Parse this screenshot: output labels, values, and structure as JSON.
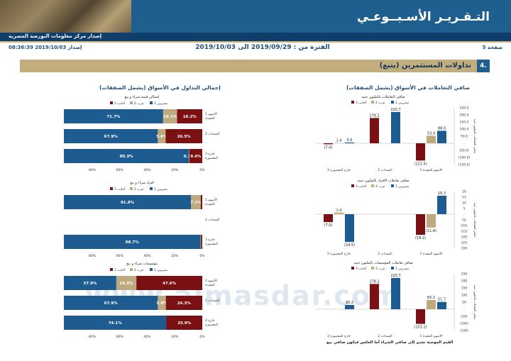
{
  "header": {
    "title": "التـقـريـر الأسـبــوعـي",
    "subtitle": "إصدار مركز معلومات البورصة المصرية"
  },
  "meta": {
    "page": "صفحة 5",
    "issued": "إصدار 2019/10/03 08:36:39",
    "period": "الفترة من : 2019/09/29 الى 2019/10/03"
  },
  "section": {
    "number": "4.",
    "title": "تداولات المستثمرين (يتبع)"
  },
  "left_title": "إجمالي التداول في الأسواق (يشمل الصفقات)",
  "right_title": "صافي التعاملات في الأسواق (يشمل الصفقات)",
  "footnote": "القيم الموجبة تشير إلى صافي الشراء أما العكس فيكون صافي بيع",
  "watermark": "www.almasdar.com",
  "colors": {
    "blue": "#1d5b90",
    "tan": "#bfa97f",
    "red": "#7a1012"
  },
  "chart_data": [
    {
      "type": "bar",
      "title": "إجمالي قيمة شراء و بيع",
      "orientation": "horizontal-stacked-100",
      "legend": [
        "مصريين 1",
        "عرب 2",
        "أجانب 3"
      ],
      "categories": [
        "الأسهم 1 المقيدة",
        "السندات 2",
        "خارج 3 المقصورة"
      ],
      "series": [
        {
          "name": "مصريين 1",
          "values": [
            71.7,
            67.9,
            90.3
          ]
        },
        {
          "name": "عرب 2",
          "values": [
            10.1,
            5.6,
            0.3
          ]
        },
        {
          "name": "أجانب 3",
          "values": [
            18.2,
            26.5,
            9.4
          ]
        }
      ],
      "labels": [
        [
          "71.7%",
          "10.1%",
          "18.2%"
        ],
        [
          "67.9%",
          "5.6%",
          "26.5%"
        ],
        [
          "90.3%",
          "0.3%",
          "9.4%"
        ]
      ],
      "ticks": [
        "80%",
        "60%",
        "40%",
        "20%",
        "0%"
      ]
    },
    {
      "type": "bar",
      "title": "افراد شراء و بيع",
      "orientation": "horizontal-stacked-100",
      "legend": [
        "مصريين 1",
        "عرب 2",
        "أجانب 3"
      ],
      "categories": [
        "الأسهم 1 المقيدة",
        "السندات 2",
        "خارج 3 المقصورة"
      ],
      "series": [
        {
          "name": "مصريين 1",
          "values": [
            91.8,
            0,
            98.7
          ]
        },
        {
          "name": "عرب 2",
          "values": [
            7.1,
            0,
            0.4
          ]
        },
        {
          "name": "أجانب 3",
          "values": [
            1.1,
            0,
            0.9
          ]
        }
      ],
      "labels": [
        [
          "91.8%",
          "7.1%",
          ""
        ],
        [
          "",
          "",
          ""
        ],
        [
          "98.7%",
          "",
          ""
        ]
      ],
      "ticks": [
        "80%",
        "60%",
        "40%",
        "20%",
        "0%"
      ]
    },
    {
      "type": "bar",
      "title": "مؤسسات شراء و بيع",
      "orientation": "horizontal-stacked-100",
      "legend": [
        "مصريين 1",
        "عرب 2",
        "أجانب 3"
      ],
      "categories": [
        "الأسهم 1 المقيدة",
        "السندات 2",
        "خارج 3 المقصورة"
      ],
      "series": [
        {
          "name": "مصريين 1",
          "values": [
            37.9,
            67.9,
            74.1
          ]
        },
        {
          "name": "عرب 2",
          "values": [
            14.5,
            5.8,
            0
          ]
        },
        {
          "name": "أجانب 3",
          "values": [
            47.6,
            26.3,
            25.9
          ]
        }
      ],
      "labels": [
        [
          "37.9%",
          "14.5%",
          "47.6%"
        ],
        [
          "67.9%",
          "5.8%",
          "26.3%"
        ],
        [
          "74.1%",
          "",
          "25.9%"
        ]
      ],
      "ticks": [
        "80%",
        "60%",
        "40%",
        "20%",
        "0%"
      ]
    },
    {
      "type": "bar",
      "title": "صافي التعاملات بالمليون جنيه",
      "orientation": "vertical-grouped",
      "legend": [
        "مصريين 1",
        "عرب 2",
        "أجانب 3"
      ],
      "categories": [
        "الأسهم المقيدة 1",
        "السندات 2",
        "خارج المقصورة 3"
      ],
      "series": [
        {
          "name": "مصريين 1",
          "values": [
            88.0,
            220.7,
            5.6
          ]
        },
        {
          "name": "عرب 2",
          "values": [
            53.4,
            0,
            1.4
          ]
        },
        {
          "name": "أجانب 3",
          "values": [
            -121.5,
            178.2,
            -7.0
          ]
        }
      ],
      "labels": [
        [
          "88.0",
          "220.7",
          "5.6"
        ],
        [
          "53.4",
          "",
          "1.4"
        ],
        [
          "(121.5)",
          "178.2",
          "(7.0)"
        ]
      ],
      "ylim": [
        -150,
        250
      ],
      "ticks": [
        "250.0",
        "200.0",
        "150.0",
        "100.0",
        "50.0",
        "-",
        "(50.0)",
        "(100.0)",
        "(150.0)"
      ],
      "ylabel": "صافي التعاملات بالمليون جنيه"
    },
    {
      "type": "bar",
      "title": "صافي تعاملات الافراد بالمليون جنيه",
      "orientation": "vertical-grouped",
      "legend": [
        "مصريين 1",
        "عرب 2",
        "أجانب 3"
      ],
      "categories": [
        "الأسهم المقيدة 1",
        "السندات 2",
        "خارج المقصورة 3"
      ],
      "series": [
        {
          "name": "مصريين 1",
          "values": [
            16.3,
            0,
            -24.5
          ]
        },
        {
          "name": "عرب 2",
          "values": [
            -11.8,
            0,
            1.4
          ]
        },
        {
          "name": "أجانب 3",
          "values": [
            -18.2,
            0,
            -7.0
          ]
        }
      ],
      "labels": [
        [
          "16.3",
          "",
          "(24.5)"
        ],
        [
          "(11.8)",
          "",
          "1.4"
        ],
        [
          "(18.2)",
          "",
          "(7.0)"
        ]
      ],
      "ylim": [
        -30,
        20
      ],
      "ticks": [
        "20",
        "15",
        "10",
        "5",
        "-",
        "(5)",
        "(10)",
        "(15)",
        "(20)",
        "(25)",
        "(30)"
      ],
      "ylabel": "صافي التعاملات بالمليون جنيه"
    },
    {
      "type": "bar",
      "title": "صافي تعاملات المؤسسات بالمليون جنيه",
      "orientation": "vertical-grouped",
      "legend": [
        "مصريين 1",
        "عرب 2",
        "أجانب 3"
      ],
      "categories": [
        "الأسهم المقيدة 1",
        "السندات 2",
        "خارج المقصورة 3"
      ],
      "series": [
        {
          "name": "مصريين 1",
          "values": [
            51.7,
            220.7,
            30.2
          ]
        },
        {
          "name": "عرب 2",
          "values": [
            65.2,
            0,
            0
          ]
        },
        {
          "name": "أجانب 3",
          "values": [
            -103.2,
            178.2,
            0
          ]
        }
      ],
      "labels": [
        [
          "51.7",
          "220.7",
          "30.2"
        ],
        [
          "65.2",
          "",
          ""
        ],
        [
          "(103.2)",
          "178.2",
          ""
        ]
      ],
      "ylim": [
        -150,
        250
      ],
      "ticks": [
        "250",
        "200",
        "150",
        "100",
        "50",
        "-",
        "(50)",
        "(100)",
        "(150)"
      ],
      "ylabel": "صافي التعاملات بالمليون جنيه"
    }
  ]
}
